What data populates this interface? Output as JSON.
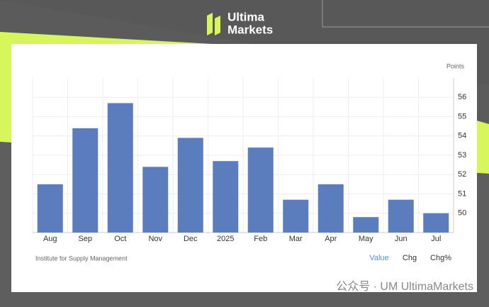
{
  "brand": {
    "line1": "Ultima",
    "line2": "Markets"
  },
  "watermark": "公众号 · UM UltimaMarkets",
  "chart_data": {
    "type": "bar",
    "unit_label": "Points",
    "source": "Institute for Supply Management",
    "tabs": [
      "Value",
      "Chg",
      "Chg%"
    ],
    "categories": [
      "Aug",
      "Sep",
      "Oct",
      "Nov",
      "Dec",
      "2025",
      "Feb",
      "Mar",
      "Apr",
      "May",
      "Jun",
      "Jul"
    ],
    "values": [
      51.5,
      54.4,
      55.7,
      52.4,
      53.9,
      52.7,
      53.4,
      50.7,
      51.5,
      49.8,
      50.7,
      50.0
    ],
    "color": "#5b7dbd",
    "ylim": [
      49,
      57
    ],
    "yticks": [
      50,
      51,
      52,
      53,
      54,
      55,
      56
    ],
    "grid": true
  }
}
